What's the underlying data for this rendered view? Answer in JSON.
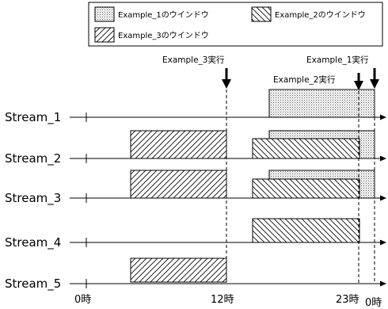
{
  "legend": {
    "example1": "Example_1のウインドウ",
    "example2": "Example_2のウインドウ",
    "example3": "Example_3のウインドウ"
  },
  "executions": {
    "example3": "Example_3実行",
    "example2": "Example_2実行",
    "example1": "Example_1実行"
  },
  "streams": [
    "Stream_1",
    "Stream_2",
    "Stream_3",
    "Stream_4",
    "Stream_5"
  ],
  "time_labels": {
    "start": "0時",
    "noon": "12時",
    "eleven_pm": "23時",
    "midnight": "0時"
  },
  "windows": {
    "Stream_1": [
      "example1"
    ],
    "Stream_2": [
      "example3",
      "example1",
      "example2"
    ],
    "Stream_3": [
      "example3",
      "example1",
      "example2"
    ],
    "Stream_4": [
      "example2"
    ],
    "Stream_5": [
      "example3"
    ]
  }
}
